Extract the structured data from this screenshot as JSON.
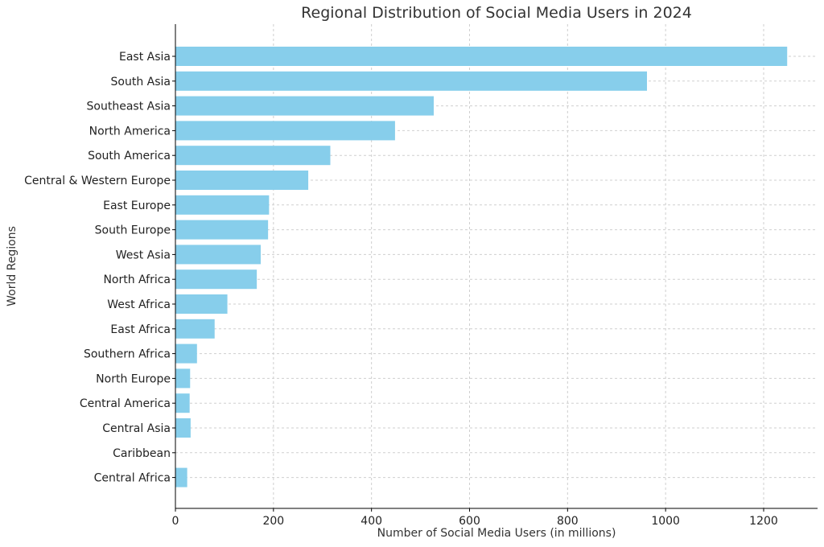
{
  "chart_data": {
    "type": "bar",
    "orientation": "horizontal",
    "title": "Regional Distribution of Social Media Users in 2024",
    "xlabel": "Number of Social Media Users (in millions)",
    "ylabel": "World Regions",
    "categories": [
      "East Asia",
      "South Asia",
      "Southeast Asia",
      "North America",
      "South America",
      "Central & Western Europe",
      "East Europe",
      "South Europe",
      "West Asia",
      "North Africa",
      "West Africa",
      "East Africa",
      "Southern Africa",
      "North Europe",
      "Central America",
      "Central Asia",
      "Caribbean",
      "Central Africa"
    ],
    "values": [
      1248,
      962,
      527,
      448,
      316,
      271,
      191,
      189,
      174,
      166,
      106,
      80,
      44,
      30,
      29,
      31,
      0,
      24
    ],
    "xlim": [
      0,
      1310
    ],
    "xticks": [
      0,
      200,
      400,
      600,
      800,
      1000,
      1200
    ],
    "grid": true,
    "bar_color": "#87ceeb"
  }
}
